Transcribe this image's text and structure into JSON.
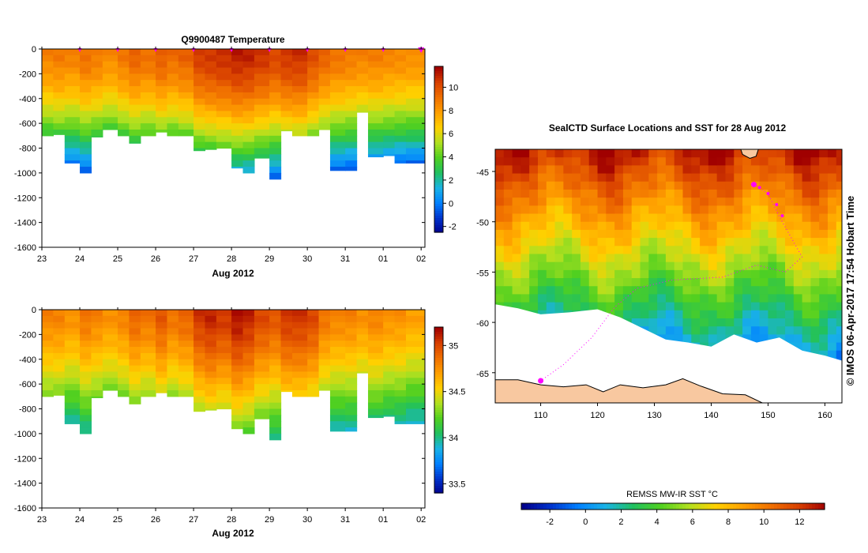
{
  "colors": {
    "ramp": [
      "#00008b",
      "#0033cc",
      "#0080ff",
      "#1ab3e6",
      "#20c060",
      "#50d020",
      "#b0e020",
      "#ffd000",
      "#ffa000",
      "#f07000",
      "#d84000",
      "#a00000"
    ],
    "land": "#f8c8a0",
    "track": "#ff00ff",
    "axis": "#000000"
  },
  "chart_data": [
    {
      "id": "temperature",
      "type": "heatmap",
      "title": "Q9900487  Temperature",
      "xlabel": "Aug 2012",
      "x_ticks": [
        "23",
        "24",
        "25",
        "26",
        "27",
        "28",
        "29",
        "30",
        "31",
        "01",
        "02"
      ],
      "x_range": [
        23,
        33.1
      ],
      "y_ticks": [
        "0",
        "-200",
        "-400",
        "-600",
        "-800",
        "-1000",
        "-1200",
        "-1400",
        "-1600"
      ],
      "ylim": [
        -1600,
        0
      ],
      "colorbar_ticks": [
        "-2",
        "0",
        "2",
        "4",
        "6",
        "8",
        "10"
      ],
      "clim": [
        -2.5,
        11.8
      ],
      "profile_starts": [
        23.0,
        23.3,
        23.6,
        24.0,
        24.3,
        24.6,
        25.0,
        25.3,
        25.6,
        26.0,
        26.3,
        26.6,
        27.0,
        27.3,
        27.6,
        28.0,
        28.3,
        28.6,
        29.0,
        29.3,
        29.6,
        30.0,
        30.3,
        30.6,
        31.0,
        31.3,
        31.6,
        32.0,
        32.3,
        32.6
      ],
      "profile_bottoms": [
        -700,
        -690,
        -920,
        -1000,
        -710,
        -650,
        -700,
        -760,
        -700,
        -670,
        -700,
        -700,
        -820,
        -810,
        -800,
        -960,
        -1000,
        -880,
        -1050,
        -660,
        -700,
        -700,
        -650,
        -980,
        -980,
        -510,
        -870,
        -860,
        -920,
        -920
      ],
      "profile_surface": [
        9.0,
        9.2,
        9.0,
        9.5,
        9.2,
        8.8,
        9.3,
        9.8,
        9.5,
        10.0,
        9.6,
        9.9,
        10.8,
        11.0,
        11.2,
        11.5,
        11.4,
        11.0,
        10.6,
        11.0,
        11.1,
        10.4,
        9.8,
        9.4,
        9.2,
        9.0,
        9.1,
        8.9,
        8.8,
        8.7
      ],
      "surfacing_markers": [
        24,
        25,
        26,
        27,
        28,
        29,
        30,
        31,
        32,
        33
      ]
    },
    {
      "id": "salinity",
      "type": "heatmap",
      "title": "",
      "xlabel": "Aug 2012",
      "x_ticks": [
        "23",
        "24",
        "25",
        "26",
        "27",
        "28",
        "29",
        "30",
        "31",
        "01",
        "02"
      ],
      "x_range": [
        23,
        33.1
      ],
      "y_ticks": [
        "0",
        "-200",
        "-400",
        "-600",
        "-800",
        "-1000",
        "-1200",
        "-1400",
        "-1600"
      ],
      "ylim": [
        -1600,
        0
      ],
      "colorbar_ticks": [
        "33.5",
        "34",
        "34.5",
        "35"
      ],
      "clim": [
        33.4,
        35.2
      ],
      "profile_starts": [
        23.0,
        23.3,
        23.6,
        24.0,
        24.3,
        24.6,
        25.0,
        25.3,
        25.6,
        26.0,
        26.3,
        26.6,
        27.0,
        27.3,
        27.6,
        28.0,
        28.3,
        28.6,
        29.0,
        29.3,
        29.6,
        30.0,
        30.3,
        30.6,
        31.0,
        31.3,
        31.6,
        32.0,
        32.3,
        32.6
      ],
      "profile_bottoms": [
        -700,
        -690,
        -920,
        -1000,
        -710,
        -650,
        -700,
        -760,
        -700,
        -670,
        -700,
        -700,
        -820,
        -810,
        -800,
        -960,
        -1000,
        -880,
        -1050,
        -660,
        -700,
        -700,
        -650,
        -980,
        -980,
        -510,
        -870,
        -860,
        -920,
        -920
      ],
      "profile_surface": [
        34.85,
        34.85,
        34.8,
        34.9,
        34.85,
        34.8,
        34.85,
        34.95,
        34.9,
        35.0,
        34.9,
        34.95,
        35.1,
        35.15,
        35.1,
        35.2,
        35.15,
        35.05,
        35.0,
        35.1,
        35.1,
        35.05,
        34.9,
        34.85,
        34.85,
        34.8,
        34.85,
        34.8,
        34.8,
        34.75
      ]
    },
    {
      "id": "sst_map",
      "type": "heatmap",
      "title": "SealCTD Surface Locations and SST for 28 Aug 2012",
      "x_ticks": [
        "110",
        "120",
        "130",
        "140",
        "150",
        "160"
      ],
      "x_range": [
        102,
        163
      ],
      "y_ticks": [
        "-45",
        "-50",
        "-55",
        "-60",
        "-65"
      ],
      "y_range": [
        -68,
        -42.8
      ],
      "colorbar_title": "REMSS MW-IR SST °C",
      "colorbar_ticks": [
        "-2",
        "0",
        "2",
        "4",
        "6",
        "8",
        "10",
        "12"
      ],
      "clim": [
        -3.6,
        13.4
      ],
      "track": [
        [
          147.5,
          -46.3
        ],
        [
          150,
          -47.2
        ],
        [
          152,
          -49.5
        ],
        [
          154,
          -51.5
        ],
        [
          156,
          -53.5
        ],
        [
          153,
          -55.0
        ],
        [
          148,
          -54.3
        ],
        [
          142,
          -55.5
        ],
        [
          133,
          -55.8
        ],
        [
          127,
          -56.6
        ],
        [
          123,
          -58.5
        ],
        [
          119,
          -61.5
        ],
        [
          114,
          -64.2
        ],
        [
          110,
          -65.8
        ]
      ],
      "track_points_bold": [
        [
          147.5,
          -46.3
        ],
        [
          148.5,
          -46.6
        ],
        [
          150,
          -47.2
        ],
        [
          151.5,
          -48.3
        ],
        [
          152.5,
          -49.4
        ]
      ],
      "track_end_circles": [
        [
          147.5,
          -46.3
        ],
        [
          110,
          -65.8
        ]
      ]
    }
  ],
  "credit": "©  IMOS 06-Apr-2017 17:54 Hobart Time"
}
